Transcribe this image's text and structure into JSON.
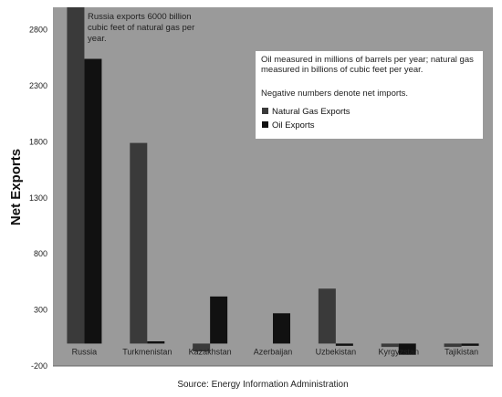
{
  "chart_data": {
    "type": "bar",
    "categories": [
      "Russia",
      "Turkmenistan",
      "Kazakhstan",
      "Azerbaijan",
      "Uzbekistan",
      "Kyrgyzstan",
      "Tajikistan"
    ],
    "series": [
      {
        "name": "Natural Gas Exports",
        "values": [
          3000,
          1790,
          -70,
          0,
          490,
          -30,
          -30
        ],
        "color": "#3a3a3a"
      },
      {
        "name": "Oil Exports",
        "values": [
          2540,
          20,
          420,
          270,
          -20,
          -100,
          -20
        ],
        "color": "#111111"
      }
    ],
    "xlabel": "",
    "ylabel": "Net Exports",
    "ylim": [
      -200,
      3000
    ],
    "yticks": [
      "-200",
      "300",
      "800",
      "1300",
      "1800",
      "2300",
      "2800"
    ],
    "ytick_values": [
      -200,
      300,
      800,
      1300,
      1800,
      2300,
      2800
    ],
    "plot_background": "#9a9a9a",
    "legend_position": "top-right",
    "annotations": {
      "russia_note": [
        "Russia exports 6000 billion",
        "cubic feet of natural gas per",
        "year."
      ],
      "units_note": [
        "Oil measured in millions of barrels per year; natural gas",
        "measured in billions of cubic feet per year."
      ],
      "negative_note": "Negative numbers denote net imports."
    },
    "source": "Source: Energy Information Administration"
  }
}
